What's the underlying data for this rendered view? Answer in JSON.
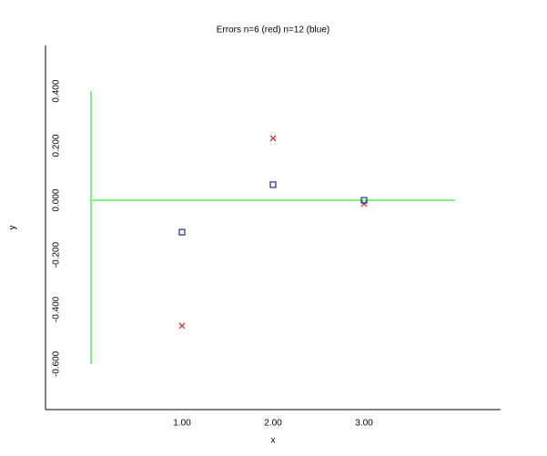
{
  "chart_data": {
    "type": "scatter",
    "title": "Errors n=6 (red) n=12 (blue)",
    "x_label": "x",
    "y_label": "y",
    "x": [
      1,
      2,
      3
    ],
    "series": [
      {
        "color": "#d02020",
        "marker": "cross",
        "values": [
          -0.46,
          0.227,
          -0.013
        ]
      },
      {
        "color": "#1a2a9a",
        "marker": "square",
        "values": [
          -0.117,
          0.057,
          0.0
        ]
      }
    ],
    "reference_lines": [
      {
        "color": "#80f080",
        "x": [
          0,
          0
        ],
        "y": [
          -0.6,
          0.4
        ]
      },
      {
        "color": "#80f080",
        "x": [
          0,
          4
        ],
        "y": [
          0,
          0
        ]
      }
    ],
    "xlim": [
      -0.5,
      4.5
    ],
    "ylim": [
      -0.767,
      0.567
    ],
    "xticks": [
      {
        "value": 1,
        "label": "1.00"
      },
      {
        "value": 2,
        "label": "2.00"
      },
      {
        "value": 3,
        "label": "3.00"
      }
    ],
    "yticks": [
      {
        "value": -0.6,
        "label": "-0.600"
      },
      {
        "value": -0.4,
        "label": "-0.400"
      },
      {
        "value": -0.2,
        "label": "-0.200"
      },
      {
        "value": 0,
        "label": "0.000"
      },
      {
        "value": 0.2,
        "label": "0.200"
      },
      {
        "value": 0.4,
        "label": "0.400"
      }
    ]
  }
}
